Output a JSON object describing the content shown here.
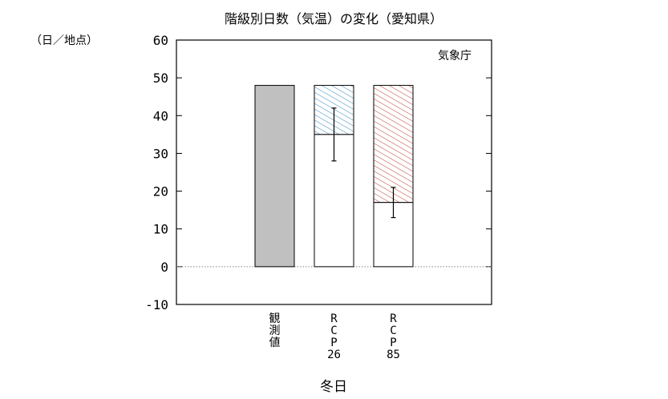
{
  "chart_data": {
    "type": "bar",
    "title": "階級別日数（気温）の変化（愛知県）",
    "ylabel": "（日／地点）",
    "xlabel": "冬日",
    "source": "気象庁",
    "ylim": [
      -10,
      60
    ],
    "yticks": [
      -10,
      0,
      10,
      20,
      30,
      40,
      50,
      60
    ],
    "grid": false,
    "zero_line": "dotted",
    "categories": [
      {
        "label_lines": [
          "観",
          "測",
          "値"
        ]
      },
      {
        "label_lines": [
          "R",
          "C",
          "P",
          "26"
        ]
      },
      {
        "label_lines": [
          "R",
          "C",
          "P",
          "85"
        ]
      }
    ],
    "bars": [
      {
        "base_value": 48,
        "total": 48,
        "fill": "#c0c0c0",
        "hatch": null,
        "error": null
      },
      {
        "base_value": 48,
        "future_value": 35,
        "total": 48,
        "fill": "#ffffff",
        "hatch_color": "#2e86c1",
        "error": [
          28,
          42
        ]
      },
      {
        "base_value": 48,
        "future_value": 17,
        "total": 48,
        "fill": "#ffffff",
        "hatch_color": "#c0392b",
        "error": [
          13,
          21
        ]
      }
    ]
  }
}
